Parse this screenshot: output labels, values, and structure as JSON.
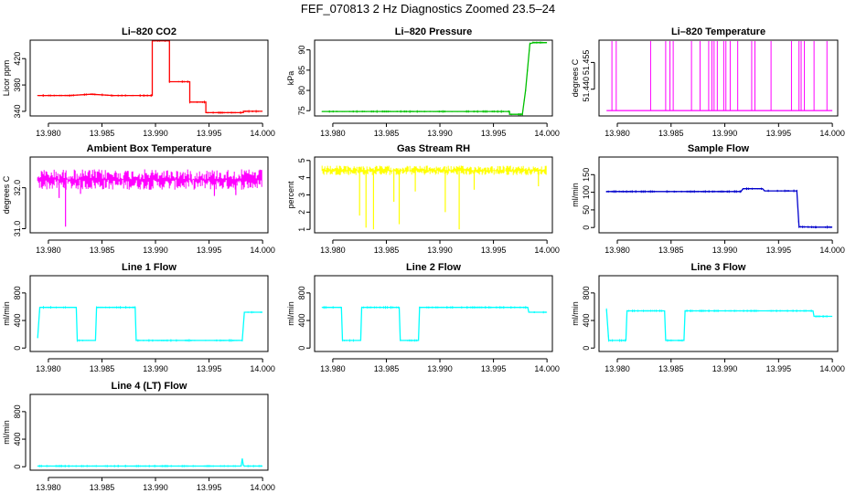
{
  "title": "FEF_070813  2 Hz Diagnostics Zoomed 23.5–24",
  "chart_data": [
    {
      "type": "line",
      "title": "Li–820 CO2",
      "ylabel": "Licor ppm",
      "color": "#ff0000",
      "xlim": [
        13.9783,
        14.0005
      ],
      "ylim": [
        333,
        448
      ],
      "x_ticks": [
        "13.980",
        "13.985",
        "13.990",
        "13.995",
        "14.000"
      ],
      "y_ticks": [
        "340",
        "380",
        "420"
      ],
      "series": [
        {
          "x": [
            13.979,
            13.982,
            13.984,
            13.986,
            13.9897,
            13.9897,
            13.9913,
            13.9913,
            13.9932,
            13.9932,
            13.9947,
            13.9947,
            13.9982,
            13.9982,
            14.0
          ],
          "y": [
            364,
            364,
            366,
            364,
            364,
            447,
            447,
            385,
            385,
            354,
            354,
            338,
            338,
            340,
            340
          ]
        }
      ]
    },
    {
      "type": "line",
      "title": "Li–820 Pressure",
      "ylabel": "kPa",
      "color": "#00c000",
      "xlim": [
        13.9783,
        14.0005
      ],
      "ylim": [
        73.7,
        92.4
      ],
      "x_ticks": [
        "13.980",
        "13.985",
        "13.990",
        "13.995",
        "14.000"
      ],
      "y_ticks": [
        "75",
        "80",
        "85",
        "90"
      ],
      "series": [
        {
          "x": [
            13.979,
            13.9965,
            13.9965,
            13.9977,
            13.998,
            13.9984,
            13.9987,
            14.0
          ],
          "y": [
            74.8,
            74.8,
            74.1,
            74.1,
            80,
            91.5,
            91.8,
            91.8
          ]
        }
      ]
    },
    {
      "type": "line",
      "title": "Li–820 Temperature",
      "ylabel": "degrees C",
      "color": "#ff00ff",
      "xlim": [
        13.9783,
        14.0005
      ],
      "ylim": [
        51.425,
        51.4675
      ],
      "x_ticks": [
        "13.980",
        "13.985",
        "13.990",
        "13.995",
        "14.000"
      ],
      "y_ticks": [
        "51.440",
        "51.455"
      ],
      "baseline": 51.428,
      "spike_top": 51.467,
      "spikes": [
        13.9795,
        13.9799,
        13.9831,
        13.9845,
        13.9849,
        13.9852,
        13.9869,
        13.9877,
        13.9885,
        13.9888,
        13.989,
        13.9893,
        13.9899,
        13.9901,
        13.9905,
        13.9912,
        13.9925,
        13.9928,
        13.9943,
        13.9962,
        13.9969,
        13.9971,
        13.9974,
        13.9983,
        13.9995
      ]
    },
    {
      "type": "line",
      "title": "Ambient Box Temperature",
      "ylabel": "degrees C",
      "color": "#ff00ff",
      "xlim": [
        13.9783,
        14.0005
      ],
      "ylim": [
        30.9,
        32.75
      ],
      "x_ticks": [
        "13.980",
        "13.985",
        "13.990",
        "13.995",
        "14.000"
      ],
      "y_ticks": [
        "31.0",
        "32.0"
      ],
      "band": [
        31.95,
        32.45
      ],
      "dips": [
        [
          13.9816,
          31.05
        ],
        [
          13.981,
          31.75
        ],
        [
          13.983,
          31.85
        ],
        [
          13.9955,
          31.8
        ],
        [
          13.9975,
          31.82
        ]
      ]
    },
    {
      "type": "line",
      "title": "Gas Stream RH",
      "ylabel": "percent",
      "color": "#ffff00",
      "xlim": [
        13.9783,
        14.0005
      ],
      "ylim": [
        0.8,
        5.2
      ],
      "x_ticks": [
        "13.980",
        "13.985",
        "13.990",
        "13.995",
        "14.000"
      ],
      "y_ticks": [
        "1",
        "2",
        "3",
        "4",
        "5"
      ],
      "band": [
        4.15,
        4.7
      ],
      "dips": [
        [
          13.9825,
          1.8
        ],
        [
          13.9831,
          1.1
        ],
        [
          13.9838,
          1.0
        ],
        [
          13.9857,
          2.6
        ],
        [
          13.9862,
          1.3
        ],
        [
          13.9877,
          3.2
        ],
        [
          13.9905,
          2.0
        ],
        [
          13.9918,
          1.0
        ],
        [
          13.9932,
          3.3
        ],
        [
          13.9992,
          3.5
        ]
      ]
    },
    {
      "type": "line",
      "title": "Sample Flow",
      "ylabel": "ml/min",
      "color": "#0000cc",
      "xlim": [
        13.9783,
        14.0005
      ],
      "ylim": [
        -15,
        200
      ],
      "x_ticks": [
        "13.980",
        "13.985",
        "13.990",
        "13.995",
        "14.000"
      ],
      "y_ticks": [
        "0",
        "50",
        "100",
        "150"
      ],
      "series": [
        {
          "x": [
            13.979,
            13.9915,
            13.9917,
            13.9935,
            13.9937,
            13.9967,
            13.9969,
            13.9985,
            14.0
          ],
          "y": [
            102,
            102,
            110,
            110,
            104,
            104,
            2,
            1,
            1
          ]
        }
      ]
    },
    {
      "type": "line",
      "title": "Line 1 Flow",
      "ylabel": "ml/min",
      "color": "#00ffff",
      "xlim": [
        13.9783,
        14.0005
      ],
      "ylim": [
        -50,
        1050
      ],
      "x_ticks": [
        "13.980",
        "13.985",
        "13.990",
        "13.995",
        "14.000"
      ],
      "y_ticks": [
        "0",
        "400",
        "800"
      ],
      "series": [
        {
          "x": [
            13.979,
            13.9792,
            13.9826,
            13.9827,
            13.9844,
            13.9845,
            13.9881,
            13.9882,
            13.9981,
            13.9983,
            14.0
          ],
          "y": [
            150,
            590,
            590,
            110,
            110,
            590,
            590,
            110,
            110,
            520,
            520
          ]
        }
      ]
    },
    {
      "type": "line",
      "title": "Line 2 Flow",
      "ylabel": "ml/min",
      "color": "#00ffff",
      "xlim": [
        13.9783,
        14.0005
      ],
      "ylim": [
        -50,
        1050
      ],
      "x_ticks": [
        "13.980",
        "13.985",
        "13.990",
        "13.995",
        "14.000"
      ],
      "y_ticks": [
        "0",
        "400",
        "800"
      ],
      "series": [
        {
          "x": [
            13.979,
            13.9808,
            13.9809,
            13.9826,
            13.9827,
            13.9862,
            13.9863,
            13.988,
            13.9881,
            13.9982,
            13.9983,
            14.0
          ],
          "y": [
            590,
            590,
            110,
            110,
            590,
            590,
            110,
            110,
            590,
            590,
            520,
            520
          ]
        }
      ]
    },
    {
      "type": "line",
      "title": "Line 3 Flow",
      "ylabel": "ml/min",
      "color": "#00ffff",
      "xlim": [
        13.9783,
        14.0005
      ],
      "ylim": [
        -50,
        1050
      ],
      "x_ticks": [
        "13.980",
        "13.985",
        "13.990",
        "13.995",
        "14.000"
      ],
      "y_ticks": [
        "0",
        "400",
        "800"
      ],
      "series": [
        {
          "x": [
            13.979,
            13.9792,
            13.9808,
            13.9809,
            13.9844,
            13.9845,
            13.9862,
            13.9863,
            13.9982,
            13.9983,
            14.0
          ],
          "y": [
            560,
            110,
            110,
            540,
            540,
            110,
            110,
            540,
            540,
            460,
            460
          ]
        }
      ]
    },
    {
      "type": "line",
      "title": "Line 4 (LT) Flow",
      "ylabel": "ml/min",
      "color": "#00ffff",
      "xlim": [
        13.9783,
        14.0005
      ],
      "ylim": [
        -50,
        1050
      ],
      "x_ticks": [
        "13.980",
        "13.985",
        "13.990",
        "13.995",
        "14.000"
      ],
      "y_ticks": [
        "0",
        "400",
        "800"
      ],
      "series": [
        {
          "x": [
            13.979,
            13.998,
            13.9981,
            13.9982,
            13.9983,
            14.0
          ],
          "y": [
            10,
            10,
            120,
            20,
            10,
            10
          ]
        }
      ]
    }
  ]
}
